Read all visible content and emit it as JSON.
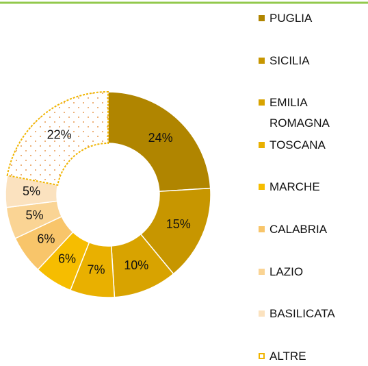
{
  "chart_data": {
    "type": "donut",
    "categories": [
      "PUGLIA",
      "SICILIA",
      "EMILIA ROMAGNA",
      "TOSCANA",
      "MARCHE",
      "CALABRIA",
      "LAZIO",
      "BASILICATA",
      "ALTRE"
    ],
    "values": [
      24,
      15,
      10,
      7,
      6,
      6,
      5,
      5,
      22
    ],
    "value_labels": [
      "24%",
      "15%",
      "10%",
      "7%",
      "6%",
      "6%",
      "5%",
      "5%",
      "22%"
    ],
    "colors": [
      "#b08500",
      "#c79600",
      "#d8a300",
      "#e9b000",
      "#f6bd00",
      "#f8c56a",
      "#fad494",
      "#fbe2bf",
      "#f0b400"
    ],
    "fill_styles": [
      "solid",
      "solid",
      "solid",
      "solid",
      "solid",
      "solid",
      "solid",
      "solid",
      "dotted"
    ],
    "legend": "right"
  }
}
